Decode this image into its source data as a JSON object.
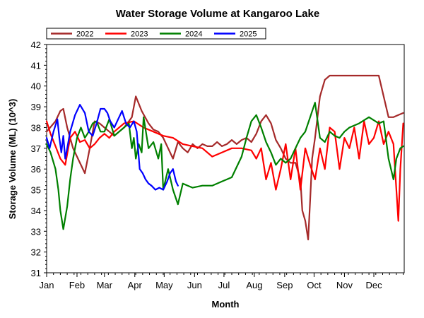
{
  "chart_data": {
    "type": "line",
    "title": "Water Storage Volume at Kangaroo Lake",
    "xlabel": "Month",
    "ylabel": "Storage Volume (ML) (10^3)",
    "categories": [
      "Jan",
      "Feb",
      "Mar",
      "Apr",
      "May",
      "Jun",
      "Jul",
      "Aug",
      "Sep",
      "Oct",
      "Nov",
      "Dec"
    ],
    "ylim": [
      31,
      42
    ],
    "yticks": [
      "31",
      "32",
      "33",
      "34",
      "35",
      "36",
      "37",
      "38",
      "39",
      "40",
      "41",
      "42"
    ],
    "grid": false,
    "legend_position": "top-left",
    "series": [
      {
        "name": "2022",
        "color": "#a52a2a",
        "x": [
          1,
          10,
          15,
          18,
          22,
          28,
          35,
          40,
          45,
          50,
          55,
          60,
          65,
          70,
          75,
          80,
          85,
          88,
          92,
          98,
          105,
          110,
          115,
          120,
          125,
          130,
          135,
          140,
          145,
          150,
          155,
          160,
          165,
          170,
          175,
          180,
          185,
          190,
          195,
          200,
          205,
          210,
          215,
          220,
          225,
          230,
          235,
          240,
          245,
          250,
          255,
          260,
          262,
          265,
          268,
          270,
          272,
          275,
          280,
          285,
          290,
          295,
          300,
          310,
          320,
          330,
          340,
          345,
          350,
          355,
          360,
          365
        ],
        "values": [
          37.8,
          38.3,
          38.8,
          38.9,
          38.0,
          37.0,
          36.3,
          35.8,
          37.0,
          38.3,
          38.2,
          38.0,
          37.8,
          37.6,
          37.8,
          38.0,
          38.3,
          38.5,
          39.5,
          38.8,
          38.2,
          37.9,
          37.8,
          37.5,
          37.0,
          36.5,
          37.3,
          37.0,
          36.8,
          37.2,
          37.0,
          37.2,
          37.1,
          37.1,
          37.3,
          37.1,
          37.2,
          37.4,
          37.2,
          37.4,
          37.5,
          37.3,
          37.7,
          38.3,
          38.6,
          38.2,
          37.4,
          37.0,
          36.5,
          36.3,
          36.3,
          35.5,
          34.0,
          33.5,
          32.6,
          34.5,
          36.5,
          37.5,
          39.5,
          40.3,
          40.5,
          40.5,
          40.5,
          40.5,
          40.5,
          40.5,
          40.5,
          39.5,
          38.5,
          38.5,
          38.6,
          38.7
        ]
      },
      {
        "name": "2023",
        "color": "#ff0000",
        "x": [
          1,
          5,
          10,
          15,
          20,
          25,
          30,
          35,
          40,
          45,
          50,
          55,
          60,
          65,
          70,
          80,
          90,
          100,
          110,
          120,
          130,
          140,
          150,
          160,
          170,
          180,
          190,
          200,
          210,
          215,
          220,
          225,
          230,
          235,
          240,
          245,
          250,
          255,
          260,
          265,
          270,
          275,
          280,
          285,
          290,
          295,
          300,
          305,
          310,
          315,
          320,
          325,
          330,
          335,
          340,
          345,
          350,
          355,
          358,
          360,
          362,
          365
        ],
        "values": [
          38.3,
          37.7,
          37.1,
          36.5,
          36.2,
          37.5,
          37.8,
          37.3,
          37.4,
          37.0,
          37.2,
          37.5,
          37.7,
          37.5,
          37.8,
          38.2,
          38.3,
          38.0,
          37.8,
          37.6,
          37.5,
          37.2,
          37.1,
          37.0,
          36.6,
          36.8,
          37.0,
          37.0,
          36.9,
          36.5,
          37.0,
          35.5,
          36.3,
          35.0,
          36.0,
          37.2,
          35.5,
          37.0,
          35.0,
          37.0,
          36.2,
          35.5,
          37.0,
          36.0,
          38.0,
          37.8,
          36.0,
          37.5,
          37.0,
          38.0,
          36.5,
          38.3,
          37.2,
          37.5,
          38.3,
          37.2,
          37.8,
          37.2,
          35.0,
          33.5,
          36.0,
          38.2
        ]
      },
      {
        "name": "2024",
        "color": "#008000",
        "x": [
          1,
          5,
          10,
          13,
          15,
          18,
          22,
          25,
          28,
          32,
          36,
          40,
          44,
          48,
          52,
          56,
          60,
          65,
          70,
          75,
          80,
          85,
          88,
          90,
          92,
          95,
          98,
          100,
          105,
          110,
          115,
          118,
          120,
          125,
          130,
          135,
          140,
          145,
          150,
          160,
          170,
          180,
          190,
          200,
          205,
          210,
          215,
          220,
          225,
          230,
          235,
          240,
          245,
          250,
          255,
          260,
          265,
          270,
          275,
          280,
          285,
          290,
          295,
          300,
          305,
          310,
          320,
          330,
          340,
          345,
          350,
          355,
          358,
          362,
          365
        ],
        "values": [
          37.2,
          36.8,
          36.0,
          35.0,
          34.0,
          33.1,
          34.2,
          35.5,
          36.5,
          37.5,
          38.0,
          37.5,
          37.8,
          38.2,
          38.3,
          37.8,
          37.8,
          38.4,
          37.6,
          37.8,
          38.0,
          38.2,
          37.0,
          37.5,
          36.5,
          37.2,
          36.8,
          38.5,
          37.0,
          37.3,
          36.5,
          37.2,
          35.0,
          36.0,
          35.0,
          34.3,
          35.3,
          35.2,
          35.1,
          35.2,
          35.2,
          35.4,
          35.6,
          36.6,
          37.5,
          38.3,
          38.6,
          38.0,
          37.3,
          36.8,
          36.2,
          36.5,
          36.3,
          36.5,
          37.0,
          37.5,
          37.8,
          38.5,
          39.2,
          37.5,
          37.3,
          37.8,
          37.6,
          37.5,
          37.8,
          38.0,
          38.2,
          38.5,
          38.2,
          38.3,
          36.5,
          35.5,
          36.5,
          37.0,
          37.1
        ]
      },
      {
        "name": "2025",
        "color": "#0000ff",
        "x": [
          1,
          4,
          8,
          12,
          14,
          16,
          18,
          20,
          22,
          25,
          30,
          35,
          40,
          44,
          48,
          52,
          56,
          60,
          63,
          66,
          70,
          74,
          78,
          82,
          86,
          90,
          93,
          96,
          99,
          102,
          105,
          108,
          112,
          116,
          120,
          124,
          127,
          130,
          133,
          135
        ],
        "values": [
          37.5,
          37.0,
          37.8,
          38.4,
          37.5,
          36.8,
          37.6,
          36.5,
          37.0,
          37.8,
          38.6,
          39.1,
          38.7,
          37.8,
          37.6,
          38.2,
          38.9,
          38.9,
          38.7,
          38.3,
          38.0,
          38.4,
          38.8,
          38.2,
          38.0,
          38.3,
          37.8,
          36.0,
          35.8,
          35.5,
          35.3,
          35.2,
          35.0,
          35.1,
          35.0,
          35.4,
          35.8,
          36.0,
          35.4,
          35.2
        ]
      }
    ]
  }
}
